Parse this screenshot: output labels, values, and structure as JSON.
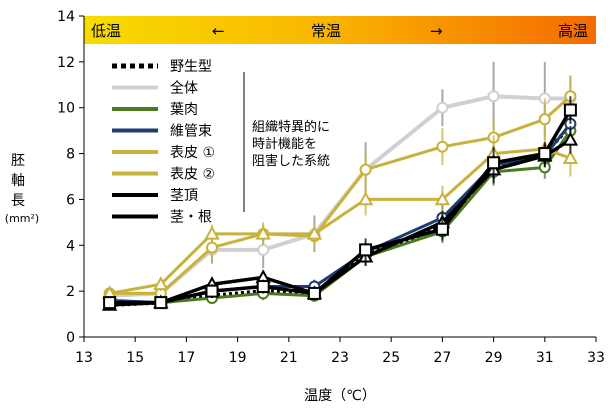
{
  "chart_data": {
    "type": "line",
    "xlabel": "温度（℃）",
    "ylabel": "胚軸長",
    "yunit": "(mm²)",
    "xlim": [
      13,
      33
    ],
    "ylim": [
      0,
      14
    ],
    "xticks": [
      13,
      15,
      17,
      19,
      21,
      23,
      25,
      27,
      29,
      31,
      33
    ],
    "yticks": [
      0,
      2,
      4,
      6,
      8,
      10,
      12,
      14
    ],
    "band": {
      "low": "低温",
      "left_arrow": "←",
      "mid": "常温",
      "right_arrow": "→",
      "high": "高温"
    },
    "note": [
      "組織特異的に",
      "時計機能を",
      "阻害した系統"
    ],
    "series": [
      {
        "name": "野生型",
        "color": "#000000",
        "dash": "dot",
        "marker": "none",
        "x": [
          14,
          16,
          18,
          20,
          22,
          24,
          27,
          29,
          31,
          32
        ],
        "y": [
          1.4,
          1.5,
          1.8,
          2.0,
          1.9,
          3.6,
          4.8,
          7.3,
          8.0,
          9.2
        ]
      },
      {
        "name": "全体",
        "color": "#d0d0d0",
        "dash": "solid",
        "marker": "circle",
        "x": [
          14,
          16,
          18,
          20,
          22,
          24,
          27,
          29,
          31,
          32
        ],
        "y": [
          1.8,
          1.9,
          3.8,
          3.8,
          4.5,
          7.3,
          10.0,
          10.5,
          10.4,
          10.4
        ],
        "err": [
          0.3,
          0.3,
          0.6,
          0.8,
          0.8,
          1.2,
          0.8,
          1.5,
          1.6,
          1.0
        ]
      },
      {
        "name": "葉肉",
        "color": "#4a7c1f",
        "dash": "solid",
        "marker": "circle",
        "x": [
          14,
          16,
          18,
          20,
          22,
          24,
          27,
          29,
          31,
          32
        ],
        "y": [
          1.5,
          1.5,
          1.7,
          1.9,
          1.8,
          3.5,
          4.6,
          7.2,
          7.4,
          9.0
        ],
        "err": [
          0.2,
          0.2,
          0.2,
          0.3,
          0.2,
          0.4,
          0.5,
          0.6,
          0.5,
          0.6
        ]
      },
      {
        "name": "維管束",
        "color": "#1f3c73",
        "dash": "solid",
        "marker": "circle",
        "x": [
          14,
          16,
          18,
          20,
          22,
          24,
          27,
          29,
          31,
          32
        ],
        "y": [
          1.6,
          1.5,
          2.0,
          2.2,
          2.2,
          3.7,
          5.2,
          7.5,
          7.9,
          9.3
        ],
        "err": [
          0.2,
          0.2,
          0.3,
          0.3,
          0.3,
          0.4,
          0.6,
          0.6,
          0.5,
          0.6
        ]
      },
      {
        "name": "表皮 ①",
        "color": "#c8b23c",
        "dash": "solid",
        "marker": "circle",
        "x": [
          14,
          16,
          18,
          20,
          22,
          24,
          27,
          29,
          31,
          32
        ],
        "y": [
          1.9,
          1.9,
          3.9,
          4.5,
          4.4,
          7.3,
          8.3,
          8.7,
          9.5,
          10.5
        ],
        "err": [
          0.3,
          0.3,
          0.5,
          0.5,
          0.4,
          0.7,
          0.8,
          0.8,
          0.9,
          0.9
        ]
      },
      {
        "name": "表皮 ②",
        "color": "#c8b23c",
        "dash": "solid",
        "marker": "triangle",
        "x": [
          14,
          16,
          18,
          20,
          22,
          24,
          27,
          29,
          31,
          32
        ],
        "y": [
          1.9,
          2.3,
          4.5,
          4.5,
          4.5,
          6.0,
          6.0,
          8.0,
          8.2,
          7.8
        ],
        "err": [
          0.3,
          0.3,
          0.4,
          0.4,
          0.4,
          0.7,
          0.6,
          0.8,
          0.7,
          0.8
        ]
      },
      {
        "name": "茎頂",
        "color": "#000000",
        "dash": "solid",
        "marker": "triangle",
        "x": [
          14,
          16,
          18,
          20,
          22,
          24,
          27,
          29,
          31,
          32
        ],
        "y": [
          1.4,
          1.5,
          2.3,
          2.6,
          1.9,
          3.5,
          5.0,
          7.3,
          7.9,
          8.6
        ],
        "err": [
          0.2,
          0.2,
          0.3,
          0.3,
          0.3,
          0.4,
          0.5,
          0.6,
          0.5,
          0.6
        ]
      },
      {
        "name": "茎・根",
        "color": "#000000",
        "dash": "solid",
        "marker": "square",
        "x": [
          14,
          16,
          18,
          20,
          22,
          24,
          27,
          29,
          31,
          32
        ],
        "y": [
          1.5,
          1.5,
          2.0,
          2.2,
          1.9,
          3.8,
          4.7,
          7.6,
          8.0,
          9.9
        ],
        "err": [
          0.2,
          0.2,
          0.3,
          0.3,
          0.3,
          0.5,
          0.5,
          0.7,
          0.5,
          0.6
        ]
      }
    ]
  }
}
